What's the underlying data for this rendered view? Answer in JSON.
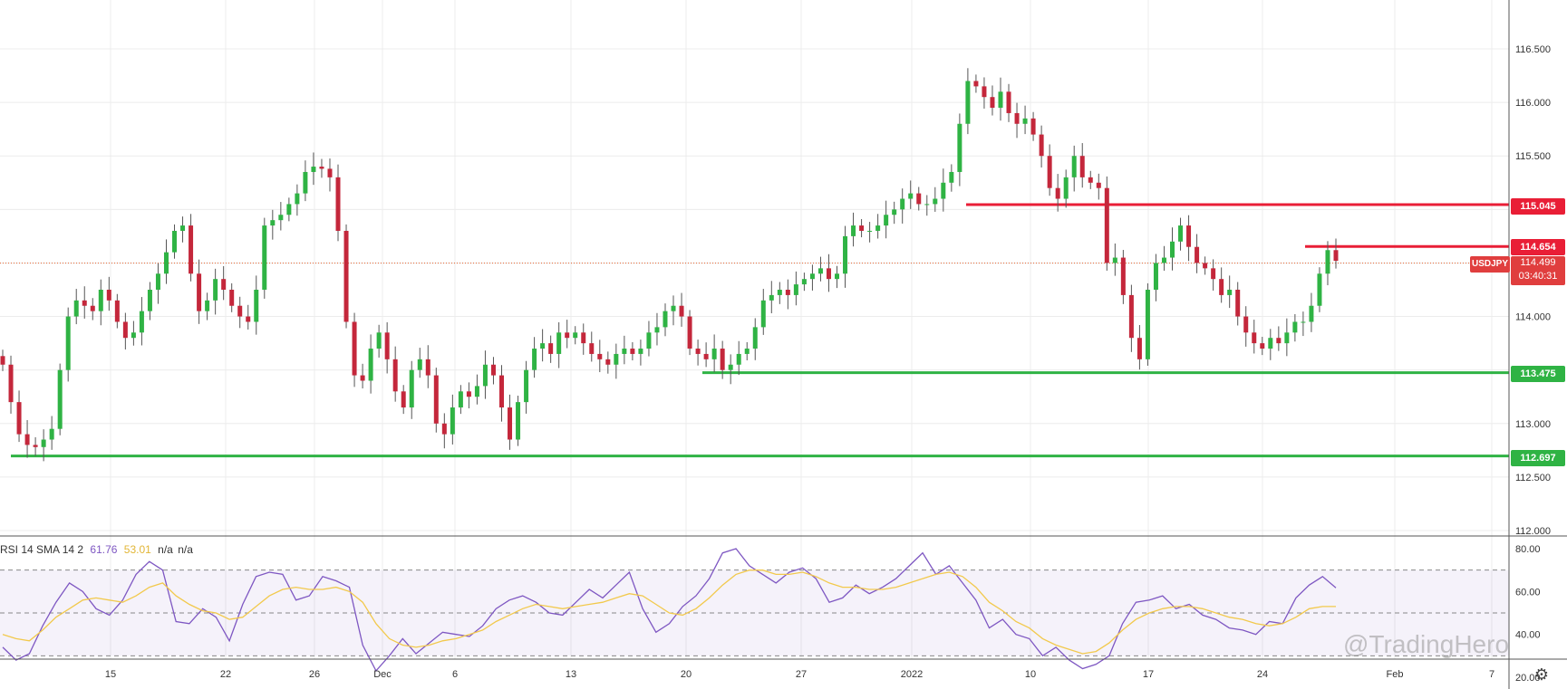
{
  "chart_data": [
    {
      "type": "candlestick",
      "symbol": "USDJPY",
      "x_tick_labels": [
        "15",
        "22",
        "26",
        "Dec",
        "6",
        "13",
        "20",
        "27",
        "2022",
        "10",
        "17",
        "24",
        "Feb",
        "7"
      ],
      "y_tick_labels": [
        "116.500",
        "116.000",
        "115.500",
        "115.000",
        "114.500",
        "114.000",
        "113.500",
        "113.000",
        "112.500",
        "112.000"
      ],
      "ylim": [
        112.0,
        116.75
      ],
      "grid": true,
      "horizontal_lines": [
        {
          "value": 115.045,
          "label": "115.045",
          "color": "#e91e36"
        },
        {
          "value": 114.654,
          "label": "114.654",
          "color": "#e91e36"
        },
        {
          "value": 113.475,
          "label": "113.475",
          "color": "#2fb344"
        },
        {
          "value": 112.697,
          "label": "112.697",
          "color": "#2fb344"
        }
      ],
      "current_price": "114.499",
      "countdown": "03:40:31",
      "closes": [
        113.55,
        113.2,
        112.9,
        112.8,
        112.78,
        112.85,
        112.95,
        113.5,
        114.0,
        114.15,
        114.1,
        114.05,
        114.25,
        114.15,
        113.95,
        113.8,
        113.85,
        114.05,
        114.25,
        114.4,
        114.6,
        114.8,
        114.85,
        114.4,
        114.05,
        114.15,
        114.35,
        114.25,
        114.1,
        114.0,
        113.95,
        114.25,
        114.85,
        114.9,
        114.95,
        115.05,
        115.15,
        115.35,
        115.4,
        115.38,
        115.3,
        114.8,
        113.95,
        113.45,
        113.4,
        113.7,
        113.85,
        113.6,
        113.3,
        113.15,
        113.5,
        113.6,
        113.45,
        113.0,
        112.9,
        113.15,
        113.3,
        113.25,
        113.35,
        113.55,
        113.45,
        113.15,
        112.85,
        113.2,
        113.5,
        113.7,
        113.75,
        113.65,
        113.85,
        113.8,
        113.85,
        113.75,
        113.65,
        113.6,
        113.55,
        113.65,
        113.7,
        113.65,
        113.7,
        113.85,
        113.9,
        114.05,
        114.1,
        114.0,
        113.7,
        113.65,
        113.6,
        113.7,
        113.5,
        113.55,
        113.65,
        113.7,
        113.9,
        114.15,
        114.2,
        114.25,
        114.2,
        114.3,
        114.35,
        114.4,
        114.45,
        114.35,
        114.4,
        114.75,
        114.85,
        114.8,
        114.8,
        114.85,
        114.95,
        115.0,
        115.1,
        115.15,
        115.05,
        115.05,
        115.1,
        115.25,
        115.35,
        115.8,
        116.2,
        116.15,
        116.05,
        115.95,
        116.1,
        115.9,
        115.8,
        115.85,
        115.7,
        115.5,
        115.2,
        115.1,
        115.3,
        115.5,
        115.3,
        115.25,
        115.2,
        114.5,
        114.55,
        114.2,
        113.8,
        113.6,
        114.25,
        114.5,
        114.55,
        114.7,
        114.85,
        114.65,
        114.5,
        114.45,
        114.35,
        114.2,
        114.25,
        114.0,
        113.85,
        113.75,
        113.7,
        113.8,
        113.75,
        113.85,
        113.95,
        113.95,
        114.1,
        114.4,
        114.62,
        114.52
      ]
    },
    {
      "type": "line",
      "title": "RSI 14 SMA 14 2",
      "series": [
        {
          "name": "RSI",
          "label": "61.76",
          "color": "#7e57c2",
          "values": [
            34,
            28,
            31,
            44,
            55,
            64,
            60,
            52,
            49,
            56,
            68,
            74,
            70,
            46,
            45,
            52,
            48,
            37,
            54,
            67,
            69,
            68,
            56,
            58,
            67,
            65,
            62,
            35,
            23,
            30,
            38,
            31,
            36,
            41,
            40,
            39,
            44,
            52,
            56,
            58,
            55,
            50,
            49,
            55,
            61,
            57,
            63,
            69,
            52,
            41,
            45,
            53,
            58,
            66,
            78,
            80,
            72,
            68,
            64,
            69,
            71,
            66,
            55,
            57,
            63,
            59,
            62,
            66,
            72,
            78,
            68,
            72,
            64,
            56,
            43,
            47,
            40,
            38,
            30,
            34,
            28,
            24,
            26,
            30,
            45,
            55,
            56,
            58,
            52,
            54,
            49,
            47,
            43,
            42,
            40,
            46,
            45,
            57,
            63,
            67,
            61.76
          ]
        },
        {
          "name": "SMA",
          "label": "53.01",
          "color": "#f2c94c",
          "values": [
            40,
            38,
            37,
            42,
            48,
            52,
            56,
            57,
            56,
            55,
            58,
            62,
            64,
            58,
            54,
            51,
            50,
            47,
            48,
            53,
            58,
            61,
            62,
            61,
            61,
            62,
            60,
            55,
            45,
            38,
            35,
            34,
            35,
            37,
            38,
            40,
            42,
            46,
            49,
            52,
            54,
            53,
            52,
            53,
            54,
            55,
            57,
            59,
            58,
            54,
            50,
            49,
            52,
            57,
            63,
            68,
            70,
            70,
            68,
            68,
            69,
            67,
            64,
            62,
            62,
            61,
            61,
            62,
            64,
            66,
            68,
            69,
            67,
            62,
            55,
            51,
            46,
            43,
            38,
            35,
            33,
            31,
            32,
            36,
            42,
            47,
            50,
            52,
            53,
            53,
            52,
            50,
            48,
            47,
            45,
            44,
            45,
            48,
            52,
            53.01,
            53.01
          ]
        }
      ],
      "extra_values": [
        "n/a",
        "n/a"
      ],
      "y_tick_labels": [
        "80.00",
        "60.00",
        "40.00",
        "20.00"
      ],
      "ylim": [
        15,
        85
      ],
      "bands": [
        30,
        50,
        70
      ]
    }
  ],
  "watermark": "@TradingHero",
  "settings_icon": "gear-icon"
}
